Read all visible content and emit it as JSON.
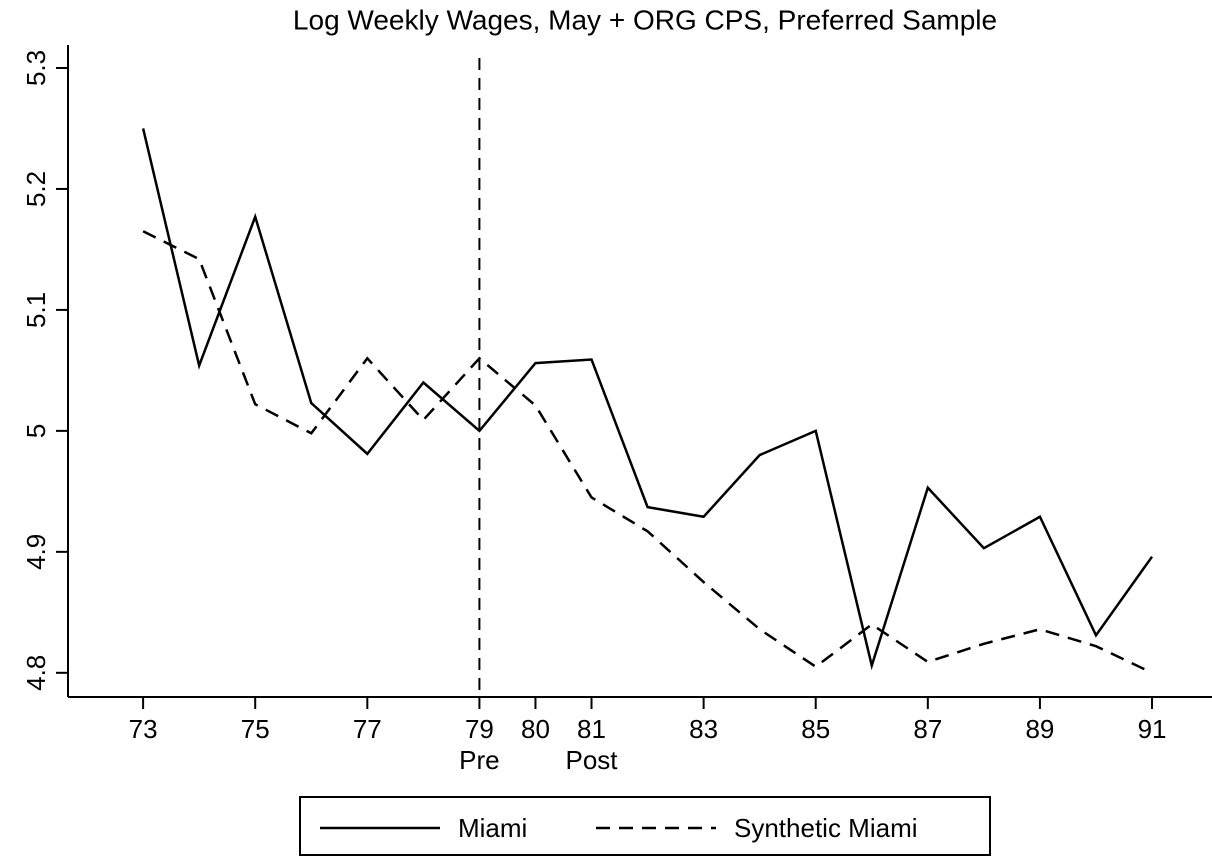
{
  "chart_data": {
    "type": "line",
    "title": "Log Weekly Wages, May + ORG CPS, Preferred Sample",
    "x": [
      73,
      74,
      75,
      76,
      77,
      78,
      79,
      80,
      81,
      82,
      83,
      84,
      85,
      86,
      87,
      88,
      89,
      90,
      91
    ],
    "series": [
      {
        "name": "Miami",
        "color": "#000000",
        "dash": "solid",
        "values": [
          5.25,
          5.054,
          5.177,
          5.023,
          4.981,
          5.04,
          5.0,
          5.056,
          5.059,
          4.937,
          4.929,
          4.98,
          5.0,
          4.806,
          4.953,
          4.903,
          4.929,
          4.831,
          4.896
        ]
      },
      {
        "name": "Synthetic Miami",
        "color": "#000000",
        "dash": "dashed",
        "values": [
          5.165,
          5.142,
          5.022,
          4.998,
          5.06,
          5.009,
          5.06,
          5.021,
          4.945,
          4.917,
          4.875,
          4.836,
          4.805,
          4.84,
          4.809,
          4.824,
          4.836,
          4.822,
          4.8
        ]
      }
    ],
    "xlim": [
      71.66,
      92.07
    ],
    "xticks": [
      73,
      75,
      77,
      79,
      80,
      81,
      83,
      85,
      87,
      89,
      91
    ],
    "ylim": [
      4.78,
      5.319
    ],
    "yticks": [
      4.8,
      4.9,
      5,
      5.1,
      5.2,
      5.3
    ],
    "vline": 79,
    "annotations": [
      {
        "text": "Pre",
        "x": 79
      },
      {
        "text": "Post",
        "x": 81
      }
    ],
    "legend": "bottom"
  }
}
